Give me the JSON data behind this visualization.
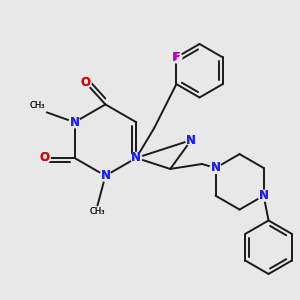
{
  "bg_color": "#e8e8e8",
  "bond_color": "#1a1a1a",
  "N_color": "#2020ff",
  "O_color": "#dd0000",
  "F_color": "#bb00bb",
  "lw": 1.4,
  "figsize": [
    3.0,
    3.0
  ],
  "dpi": 100,
  "xlim": [
    0,
    300
  ],
  "ylim": [
    0,
    300
  ]
}
